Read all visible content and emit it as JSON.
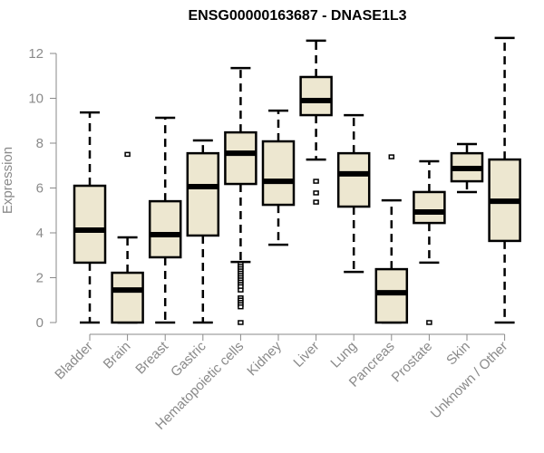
{
  "chart_data": {
    "type": "box",
    "title": "ENSG00000163687 - DNASE1L3",
    "xlabel": "",
    "ylabel": "Expression",
    "ylim": [
      0,
      12
    ],
    "yticks": [
      "0",
      "2",
      "4",
      "6",
      "8",
      "10",
      "12"
    ],
    "grid": false,
    "box_color": "#ede7d0",
    "line_color": "#000000",
    "axis_color": "#8a8a8a",
    "categories": [
      "Bladder",
      "Brain",
      "Breast",
      "Gastric",
      "Hematopoietic cells",
      "Kidney",
      "Liver",
      "Lung",
      "Pancreas",
      "Prostate",
      "Skin",
      "Unknown / Other"
    ],
    "boxes": [
      {
        "name": "Bladder",
        "whisker_low": 0,
        "q1": 2.67,
        "median": 4.12,
        "q3": 6.1,
        "whisker_high": 9.37,
        "outliers": []
      },
      {
        "name": "Brain",
        "whisker_low": 0,
        "q1": 0,
        "median": 1.45,
        "q3": 2.22,
        "whisker_high": 3.8,
        "outliers": [
          7.5
        ]
      },
      {
        "name": "Breast",
        "whisker_low": 0,
        "q1": 2.91,
        "median": 3.92,
        "q3": 5.41,
        "whisker_high": 9.13,
        "outliers": []
      },
      {
        "name": "Gastric",
        "whisker_low": 0,
        "q1": 3.88,
        "median": 6.06,
        "q3": 7.55,
        "whisker_high": 8.12,
        "outliers": []
      },
      {
        "name": "Hematopoietic cells",
        "whisker_low": 2.7,
        "q1": 6.18,
        "median": 7.55,
        "q3": 8.48,
        "whisker_high": 11.35,
        "outliers": [
          2.6,
          2.5,
          2.4,
          2.3,
          2.2,
          2.1,
          2.0,
          1.9,
          1.8,
          1.7,
          1.6,
          1.45,
          1.1,
          1.0,
          0.9,
          0.8,
          0.7,
          0
        ]
      },
      {
        "name": "Kidney",
        "whisker_low": 3.47,
        "q1": 5.25,
        "median": 6.3,
        "q3": 8.08,
        "whisker_high": 9.45,
        "outliers": []
      },
      {
        "name": "Liver",
        "whisker_low": 7.27,
        "q1": 9.25,
        "median": 9.9,
        "q3": 10.95,
        "whisker_high": 12.57,
        "outliers": [
          6.3,
          5.78,
          5.37
        ]
      },
      {
        "name": "Lung",
        "whisker_low": 2.26,
        "q1": 5.17,
        "median": 6.63,
        "q3": 7.55,
        "whisker_high": 9.25,
        "outliers": []
      },
      {
        "name": "Pancreas",
        "whisker_low": 0,
        "q1": 0,
        "median": 1.33,
        "q3": 2.38,
        "whisker_high": 5.45,
        "outliers": [
          7.39
        ]
      },
      {
        "name": "Prostate",
        "whisker_low": 2.67,
        "q1": 4.44,
        "median": 4.93,
        "q3": 5.82,
        "whisker_high": 7.19,
        "outliers": [
          0
        ]
      },
      {
        "name": "Skin",
        "whisker_low": 5.82,
        "q1": 6.3,
        "median": 6.87,
        "q3": 7.55,
        "whisker_high": 7.96,
        "outliers": []
      },
      {
        "name": "Unknown / Other",
        "whisker_low": 0,
        "q1": 3.64,
        "median": 5.41,
        "q3": 7.27,
        "whisker_high": 12.69,
        "outliers": []
      }
    ]
  }
}
